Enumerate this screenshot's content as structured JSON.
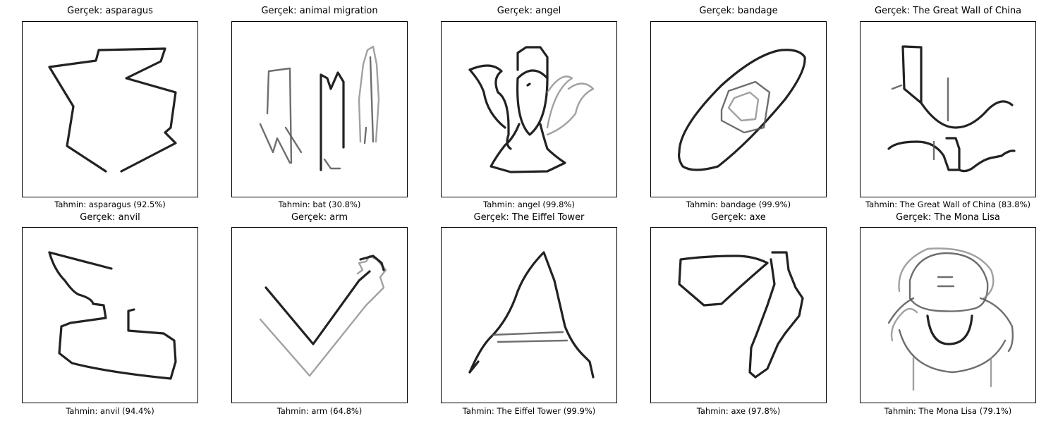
{
  "panels": [
    {
      "title": "Gerçek: asparagus",
      "caption": "Tahmin: asparagus (92.5%)",
      "icon": "asparagus-sketch"
    },
    {
      "title": "Gerçek: animal migration",
      "caption": "Tahmin: bat (30.8%)",
      "icon": "animal-migration-sketch"
    },
    {
      "title": "Gerçek: angel",
      "caption": "Tahmin: angel (99.8%)",
      "icon": "angel-sketch"
    },
    {
      "title": "Gerçek: bandage",
      "caption": "Tahmin: bandage (99.9%)",
      "icon": "bandage-sketch"
    },
    {
      "title": "Gerçek: The Great Wall of China",
      "caption": "Tahmin: The Great Wall of China (83.8%)",
      "icon": "great-wall-sketch"
    },
    {
      "title": "Gerçek: anvil",
      "caption": "Tahmin: anvil (94.4%)",
      "icon": "anvil-sketch"
    },
    {
      "title": "Gerçek: arm",
      "caption": "Tahmin: arm (64.8%)",
      "icon": "arm-sketch"
    },
    {
      "title": "Gerçek: The Eiffel Tower",
      "caption": "Tahmin: The Eiffel Tower (99.9%)",
      "icon": "eiffel-tower-sketch"
    },
    {
      "title": "Gerçek: axe",
      "caption": "Tahmin: axe (97.8%)",
      "icon": "axe-sketch"
    },
    {
      "title": "Gerçek: The Mona Lisa",
      "caption": "Tahmin: The Mona Lisa (79.1%)",
      "icon": "mona-lisa-sketch"
    }
  ]
}
